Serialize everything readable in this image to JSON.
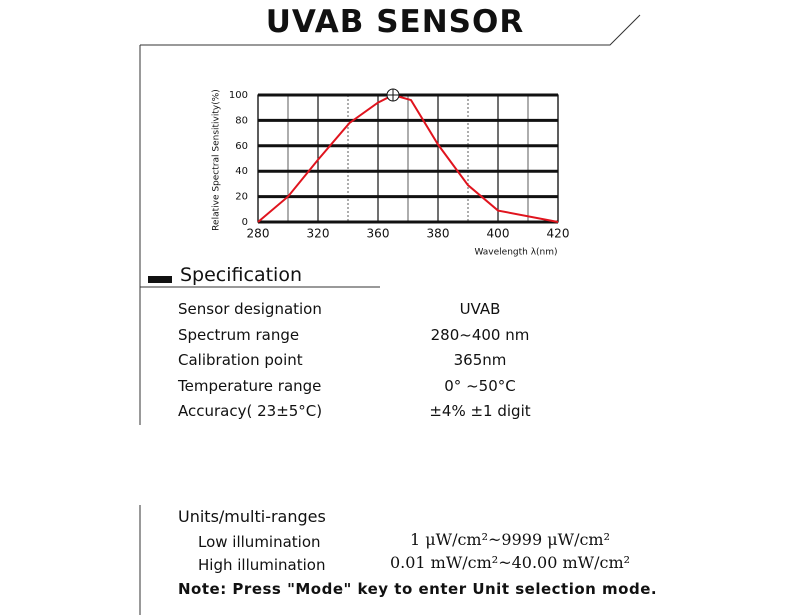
{
  "header": {
    "title": "UVAB SENSOR"
  },
  "chart_data": {
    "type": "line",
    "ylabel": "Relative Spectral Sensitivity(%)",
    "xlabel": "Wavelength λ(nm)",
    "x": [
      280,
      300,
      320,
      341,
      360,
      365,
      371,
      380,
      390,
      400,
      420
    ],
    "series": [
      {
        "color": "#e0141e",
        "values": [
          0,
          20,
          49,
          78,
          94,
          100,
          96,
          61,
          29,
          9,
          0
        ]
      }
    ],
    "xlim": [
      280,
      420
    ],
    "xticks": [
      280,
      320,
      360,
      380,
      400,
      420
    ],
    "ylim": [
      0,
      100
    ],
    "yticks": [
      0,
      20,
      40,
      60,
      80,
      100
    ],
    "grid": true
  },
  "specification": {
    "heading": "Specification",
    "rows": [
      [
        "Sensor designation",
        "UVAB"
      ],
      [
        "Spectrum range",
        "280~400 nm"
      ],
      [
        "Calibration point",
        "365nm"
      ],
      [
        "Temperature range",
        "0° ~50°C"
      ],
      [
        "Accuracy( 23±5°C)",
        "±4% ±1 digit"
      ]
    ]
  },
  "units": {
    "heading": "Units/multi-ranges",
    "rows": [
      [
        "Low illumination",
        "1 μW/cm²~9999 μW/cm²"
      ],
      [
        "High illumination",
        "0.01 mW/cm²~40.00 mW/cm²"
      ]
    ],
    "note": "Note: Press \"Mode\" key to enter Unit selection mode."
  }
}
